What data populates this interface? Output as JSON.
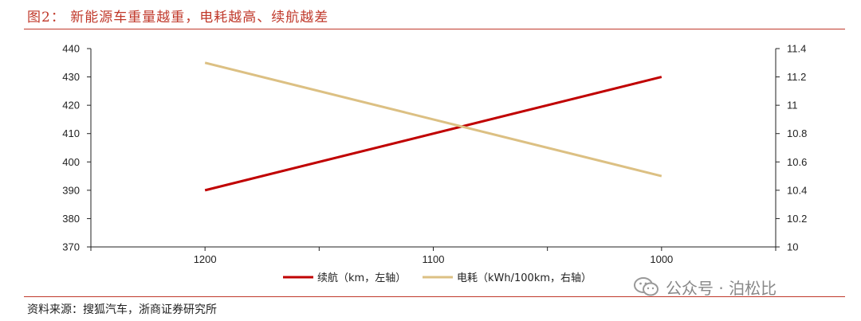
{
  "header": {
    "title": "图2：  新能源车重量越重，电耗越高、续航越差"
  },
  "footer": {
    "source": "资料来源：搜狐汽车，浙商证券研究所"
  },
  "watermark": {
    "text": "公众号 · 泊松比",
    "icon": "wechat-icon"
  },
  "colors": {
    "accent": "#c0392b",
    "series1": "#c00000",
    "series2": "#dcc083"
  },
  "chart_data": {
    "type": "line",
    "title": "新能源车重量越重，电耗越高、续航越差",
    "categories": [
      "1200",
      "1100",
      "1000"
    ],
    "x": [
      1200,
      1000
    ],
    "xlim": [
      1250,
      950
    ],
    "series": [
      {
        "name": "续航（km，左轴）",
        "axis": "left",
        "x": [
          1200,
          1000
        ],
        "values": [
          390,
          430
        ],
        "color": "#c00000"
      },
      {
        "name": "电耗（kWh/100km，右轴）",
        "axis": "right",
        "x": [
          1200,
          1000
        ],
        "values": [
          11.3,
          10.5
        ],
        "color": "#dcc083"
      }
    ],
    "y_left": {
      "lim": [
        370,
        440
      ],
      "ticks": [
        "440",
        "430",
        "420",
        "410",
        "400",
        "390",
        "380",
        "370"
      ]
    },
    "y_right": {
      "lim": [
        10,
        11.4
      ],
      "ticks": [
        "11.4",
        "11.2",
        "11",
        "10.8",
        "10.6",
        "10.4",
        "10.2",
        "10"
      ]
    },
    "grid": false,
    "legend": "bottom"
  }
}
